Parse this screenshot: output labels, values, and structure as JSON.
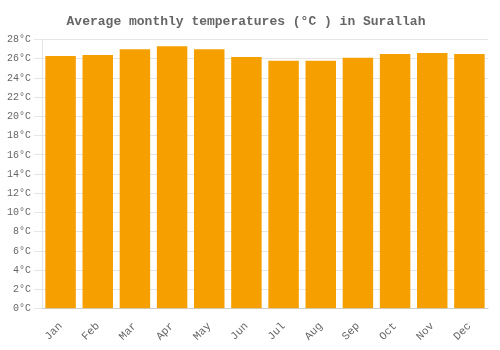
{
  "chart_data": {
    "type": "bar",
    "title": "Average monthly temperatures (°C ) in Surallah",
    "categories": [
      "Jan",
      "Feb",
      "Mar",
      "Apr",
      "May",
      "Jun",
      "Jul",
      "Aug",
      "Sep",
      "Oct",
      "Nov",
      "Dec"
    ],
    "values": [
      26.3,
      26.4,
      27.0,
      27.3,
      27.0,
      26.2,
      25.8,
      25.8,
      26.1,
      26.5,
      26.6,
      26.5
    ],
    "color": "#F5A000",
    "ylim": [
      0,
      28
    ],
    "yticks": [
      {
        "value": 0,
        "label": "0°C"
      },
      {
        "value": 2,
        "label": "2°C"
      },
      {
        "value": 4,
        "label": "4°C"
      },
      {
        "value": 6,
        "label": "6°C"
      },
      {
        "value": 8,
        "label": "8°C"
      },
      {
        "value": 10,
        "label": "10°C"
      },
      {
        "value": 12,
        "label": "12°C"
      },
      {
        "value": 14,
        "label": "14°C"
      },
      {
        "value": 16,
        "label": "16°C"
      },
      {
        "value": 18,
        "label": "18°C"
      },
      {
        "value": 20,
        "label": "20°C"
      },
      {
        "value": 22,
        "label": "22°C"
      },
      {
        "value": 24,
        "label": "24°C"
      },
      {
        "value": 26,
        "label": "26°C"
      },
      {
        "value": 28,
        "label": "28°C"
      }
    ],
    "grid": true
  }
}
